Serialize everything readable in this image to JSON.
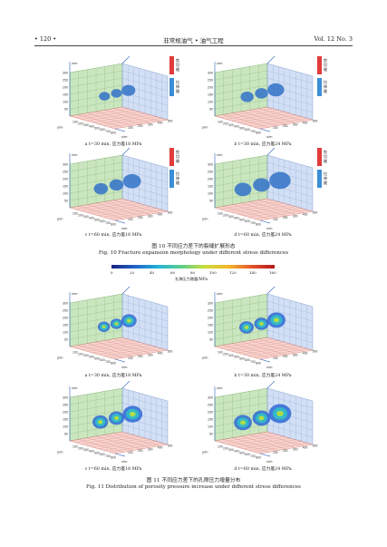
{
  "header": {
    "page": "• 120 •",
    "journal": "非常规油气 • 油气工程",
    "volume": "Vol. 12  No. 3"
  },
  "fig10": {
    "caption_cn": "图 10   不同应力差下的裂缝扩展形态",
    "caption_en": "Fig. 10   Fracture expansion morphology under different stress differences",
    "legend": {
      "shear": "剪切缝",
      "tensile": "拉伸缝"
    },
    "panels": [
      {
        "label": "a t=30 min, 应力差18 MPa"
      },
      {
        "label": "b t=30 min, 应力差24 MPa"
      },
      {
        "label": "c t=60 min, 应力差18 MPa"
      },
      {
        "label": "d t=60 min, 应力差24 MPa"
      }
    ]
  },
  "fig11": {
    "caption_cn": "图 11   不同应力差下的孔隙压力增量分布",
    "caption_en": "Fig. 11   Distribution of porosity pressure increase under different stress differences",
    "colorbar": {
      "title": "孔隙压力增量/MPa",
      "ticks": [
        "0",
        "20",
        "40",
        "60",
        "80",
        "100",
        "120",
        "140",
        "160"
      ]
    },
    "panels": [
      {
        "label": "a t=30 min, 应力差18 MPa"
      },
      {
        "label": "b t=30 min, 应力差24 MPa"
      },
      {
        "label": "c t=60 min, 应力差18 MPa"
      },
      {
        "label": "d t=60 min, 应力差24 MPa"
      }
    ]
  },
  "axes": {
    "z": "z/m",
    "y": "y/m",
    "x": "x/m",
    "z_ticks": [
      "300",
      "250",
      "200",
      "150",
      "100",
      "50"
    ],
    "x_ticks": [
      "100",
      "200",
      "300",
      "400",
      "500",
      "600",
      "700",
      "800"
    ],
    "y_ticks": [
      "100",
      "200",
      "300",
      "400",
      "500"
    ]
  },
  "colors": {
    "shear": "#e23b3b",
    "tensile": "#3b8fd6",
    "fracture": "#3a78c9"
  }
}
